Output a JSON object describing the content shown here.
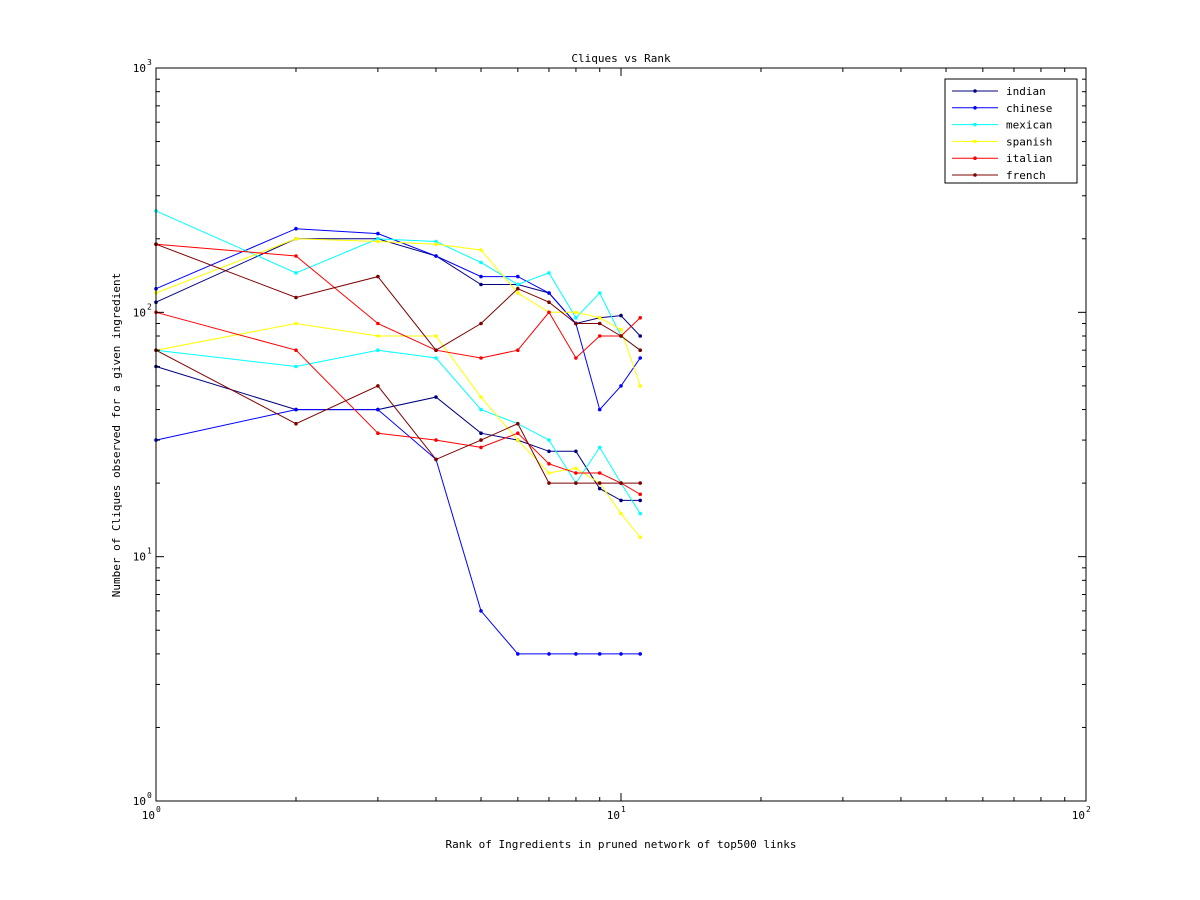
{
  "chart_data": {
    "type": "line",
    "title": "Cliques vs Rank",
    "xlabel": "Rank of Ingredients in pruned network of top500 links",
    "ylabel": "Number of Cliques observed for a given ingredient",
    "xscale": "log",
    "yscale": "log",
    "xlim": [
      1,
      100
    ],
    "ylim": [
      1,
      1000
    ],
    "grid": false,
    "legend_position": "top-right",
    "x_ticks": [
      {
        "base": "10",
        "exp": "0"
      },
      {
        "base": "10",
        "exp": "1"
      },
      {
        "base": "10",
        "exp": "2"
      }
    ],
    "y_ticks": [
      {
        "base": "10",
        "exp": "0"
      },
      {
        "base": "10",
        "exp": "1"
      },
      {
        "base": "10",
        "exp": "2"
      },
      {
        "base": "10",
        "exp": "3"
      }
    ],
    "series": [
      {
        "name": "indian",
        "color": "#00007f",
        "lines": [
          {
            "x": [
              1,
              2,
              3,
              4,
              5,
              6,
              7,
              8,
              9,
              10,
              11
            ],
            "y": [
              110,
              200,
              200,
              170,
              130,
              130,
              120,
              90,
              95,
              97,
              80
            ]
          },
          {
            "x": [
              1,
              2,
              3,
              4,
              5,
              6,
              7,
              8,
              9,
              10,
              11
            ],
            "y": [
              60,
              40,
              40,
              45,
              32,
              30,
              27,
              27,
              19,
              17,
              17
            ]
          }
        ]
      },
      {
        "name": "chinese",
        "color": "#0000ff",
        "lines": [
          {
            "x": [
              1,
              2,
              3,
              4,
              5,
              6,
              7,
              8,
              9,
              10,
              11
            ],
            "y": [
              125,
              220,
              210,
              170,
              140,
              140,
              120,
              90,
              40,
              50,
              65
            ]
          },
          {
            "x": [
              1,
              2,
              3,
              4,
              5,
              6,
              7,
              8,
              9,
              10,
              11
            ],
            "y": [
              30,
              40,
              40,
              25,
              6,
              4,
              4,
              4,
              4,
              4,
              4
            ]
          }
        ]
      },
      {
        "name": "mexican",
        "color": "#00ffff",
        "lines": [
          {
            "x": [
              1,
              2,
              3,
              4,
              5,
              6,
              7,
              8,
              9,
              10,
              11
            ],
            "y": [
              260,
              145,
              200,
              195,
              160,
              130,
              145,
              95,
              120,
              80,
              70
            ]
          },
          {
            "x": [
              1,
              2,
              3,
              4,
              5,
              6,
              7,
              8,
              9,
              10,
              11
            ],
            "y": [
              70,
              60,
              70,
              65,
              40,
              35,
              30,
              20,
              28,
              20,
              15
            ]
          }
        ]
      },
      {
        "name": "spanish",
        "color": "#ffff00",
        "lines": [
          {
            "x": [
              1,
              2,
              3,
              4,
              5,
              6,
              7,
              8,
              9,
              10,
              11
            ],
            "y": [
              120,
              200,
              195,
              190,
              180,
              120,
              100,
              100,
              95,
              85,
              50
            ]
          },
          {
            "x": [
              1,
              2,
              3,
              4,
              5,
              6,
              7,
              8,
              9,
              10,
              11
            ],
            "y": [
              70,
              90,
              80,
              80,
              45,
              30,
              22,
              23,
              20,
              15,
              12
            ]
          }
        ]
      },
      {
        "name": "italian",
        "color": "#ff0000",
        "lines": [
          {
            "x": [
              1,
              2,
              3,
              4,
              5,
              6,
              7,
              8,
              9,
              10,
              11
            ],
            "y": [
              190,
              170,
              90,
              70,
              65,
              70,
              100,
              65,
              80,
              80,
              95
            ]
          },
          {
            "x": [
              1,
              2,
              3,
              4,
              5,
              6,
              7,
              8,
              9,
              10,
              11
            ],
            "y": [
              100,
              70,
              32,
              30,
              28,
              32,
              24,
              22,
              22,
              20,
              18
            ]
          }
        ]
      },
      {
        "name": "french",
        "color": "#7f0000",
        "lines": [
          {
            "x": [
              1,
              2,
              3,
              4,
              5,
              6,
              7,
              8,
              9,
              10,
              11
            ],
            "y": [
              190,
              115,
              140,
              70,
              90,
              125,
              110,
              90,
              90,
              80,
              70
            ]
          },
          {
            "x": [
              1,
              2,
              3,
              4,
              5,
              6,
              7,
              8,
              9,
              10,
              11
            ],
            "y": [
              70,
              35,
              50,
              25,
              30,
              35,
              20,
              20,
              20,
              20,
              20
            ]
          }
        ]
      }
    ]
  }
}
